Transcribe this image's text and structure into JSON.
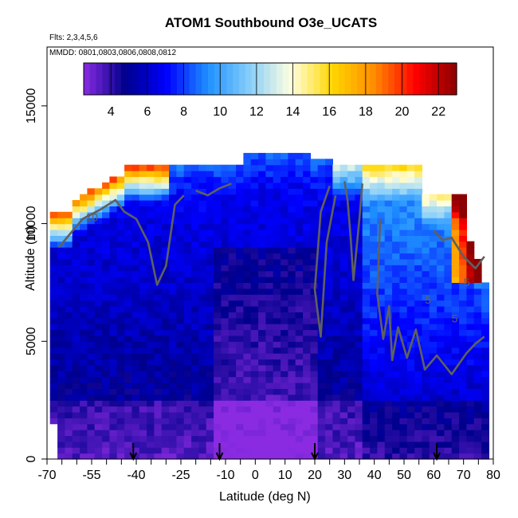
{
  "chart_data": {
    "type": "heatmap",
    "title": "ATOM1 Southbound O3e_UCATS",
    "subtitle_flights": "Flts: 2,3,4,5,6",
    "subtitle_dates": "MMDD: 0801,0803,0806,0808,0812",
    "xlabel": "Latitude (deg N)",
    "ylabel": "Altitude (m)",
    "xlim": [
      -70,
      80
    ],
    "ylim": [
      0,
      17500
    ],
    "x_ticks": [
      -70,
      -55,
      -40,
      -25,
      -10,
      0,
      10,
      20,
      30,
      40,
      50,
      60,
      70,
      80
    ],
    "x_tick_labels": [
      "-70",
      "-55",
      "-40",
      "-25",
      "-10",
      "0",
      "10",
      "20",
      "30",
      "40",
      "50",
      "60",
      "70",
      "80"
    ],
    "y_ticks": [
      0,
      5000,
      10000,
      15000
    ],
    "y_tick_labels": [
      "0",
      "5000",
      "10000",
      "15000"
    ],
    "colorbar": {
      "min": 2.5,
      "max": 23,
      "ticks": [
        4,
        6,
        8,
        10,
        12,
        14,
        16,
        18,
        20,
        22
      ],
      "tick_labels": [
        "4",
        "6",
        "8",
        "10",
        "12",
        "14",
        "16",
        "18",
        "20",
        "22"
      ],
      "colors": [
        "#8a2be2",
        "#00008b",
        "#0000ff",
        "#1e90ff",
        "#87cefa",
        "#ffffe0",
        "#ffd700",
        "#ff8c00",
        "#ff0000",
        "#8b0000"
      ]
    },
    "contour_labels": [
      "10",
      "5",
      "5",
      "5"
    ],
    "arrow_latitudes": [
      -41,
      -12,
      20,
      61
    ],
    "grid": false,
    "legend_position": "top"
  }
}
